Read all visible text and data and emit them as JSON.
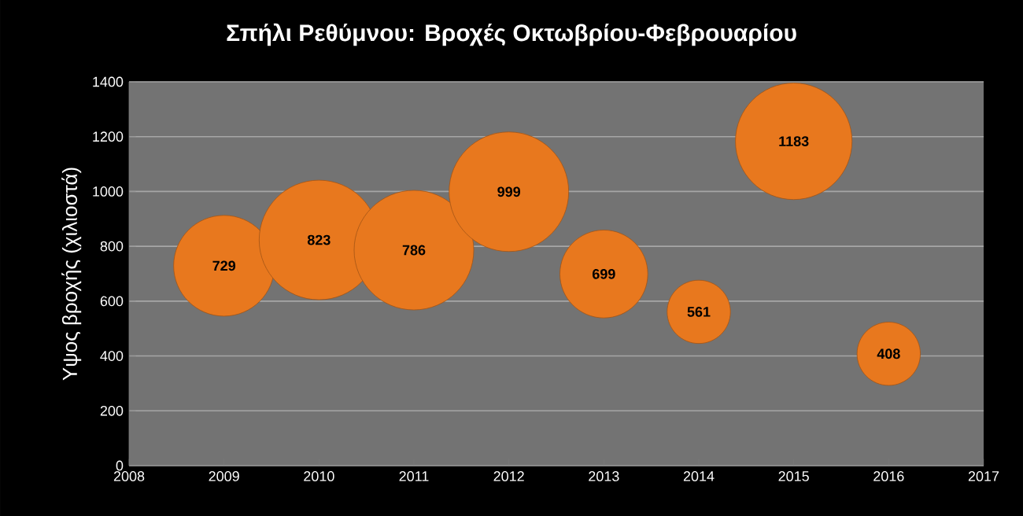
{
  "chart_data": {
    "type": "bubble",
    "title": "Σπήλι Ρεθύμνου: Βροχές Οκτωβρίου-Φεβρουαρίου",
    "ylabel": "Υψος βροχής (χιλιοστά)",
    "x": [
      2009,
      2010,
      2011,
      2012,
      2013,
      2014,
      2015,
      2016
    ],
    "values": [
      729,
      823,
      786,
      999,
      699,
      561,
      1183,
      408
    ],
    "sizes": [
      0.71,
      1,
      1,
      1,
      0.54,
      0.28,
      0.95,
      0.28
    ],
    "color": "#e8781e",
    "data_labels": true,
    "grid": "y",
    "xlim": [
      2008,
      2017
    ],
    "xticks": [
      2008,
      2009,
      2010,
      2011,
      2012,
      2013,
      2014,
      2015,
      2016,
      2017
    ],
    "ylim": [
      0,
      1400
    ],
    "yticks": [
      0,
      200,
      400,
      600,
      800,
      1000,
      1200,
      1400
    ]
  }
}
